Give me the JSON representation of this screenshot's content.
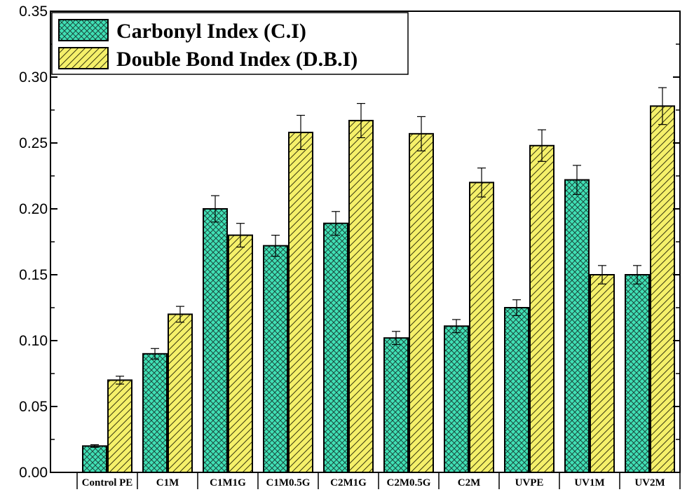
{
  "chart_data": {
    "type": "bar",
    "categories": [
      "Control PE",
      "C1M",
      "C1M1G",
      "C1M0.5G",
      "C2M1G",
      "C2M0.5G",
      "C2M",
      "UVPE",
      "UV1M",
      "UV2M"
    ],
    "series": [
      {
        "name": "Carbonyl Index (C.I)",
        "values": [
          0.02,
          0.09,
          0.2,
          0.172,
          0.189,
          0.102,
          0.111,
          0.125,
          0.222,
          0.15
        ],
        "errors": [
          0.001,
          0.004,
          0.01,
          0.008,
          0.009,
          0.005,
          0.005,
          0.006,
          0.011,
          0.007
        ],
        "color": "#40e0b5",
        "pattern": "crosshatch"
      },
      {
        "name": "Double Bond Index (D.B.I)",
        "values": [
          0.07,
          0.12,
          0.18,
          0.258,
          0.267,
          0.257,
          0.22,
          0.248,
          0.15,
          0.278
        ],
        "errors": [
          0.003,
          0.006,
          0.009,
          0.013,
          0.013,
          0.013,
          0.011,
          0.012,
          0.007,
          0.014
        ],
        "color": "#f5f06a",
        "pattern": "diagonal"
      }
    ],
    "yticks": [
      "0.00",
      "0.05",
      "0.10",
      "0.15",
      "0.20",
      "0.25",
      "0.30",
      "0.35"
    ],
    "ylim": [
      0,
      0.35
    ],
    "legend_position": "top-left",
    "grid": false
  }
}
